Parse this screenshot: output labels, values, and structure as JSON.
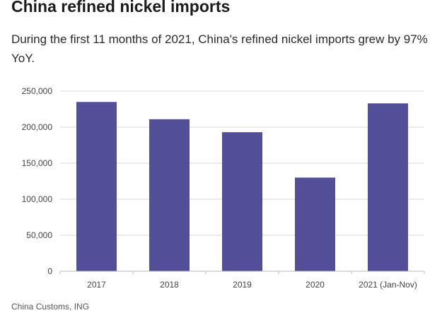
{
  "header": {
    "title": "China refined nickel imports",
    "subtitle": "During the first 11 months of 2021, China's refined nickel imports grew by 97% YoY."
  },
  "source": "China Customs, ING",
  "colors": {
    "bar": "#524f98",
    "grid": "#d9d9d9",
    "axis_text": "#444444"
  },
  "chart_data": {
    "type": "bar",
    "title": "",
    "xlabel": "",
    "ylabel": "",
    "categories": [
      "2017",
      "2018",
      "2019",
      "2020",
      "2021 (Jan-Nov)"
    ],
    "values": [
      235000,
      211000,
      193000,
      130000,
      233000
    ],
    "ylim": [
      0,
      250000
    ],
    "yticks": [
      0,
      50000,
      100000,
      150000,
      200000,
      250000
    ],
    "ytick_labels": [
      "0",
      "50,000",
      "100,000",
      "150,000",
      "200,000",
      "250,000"
    ],
    "grid": true,
    "legend": "none"
  }
}
